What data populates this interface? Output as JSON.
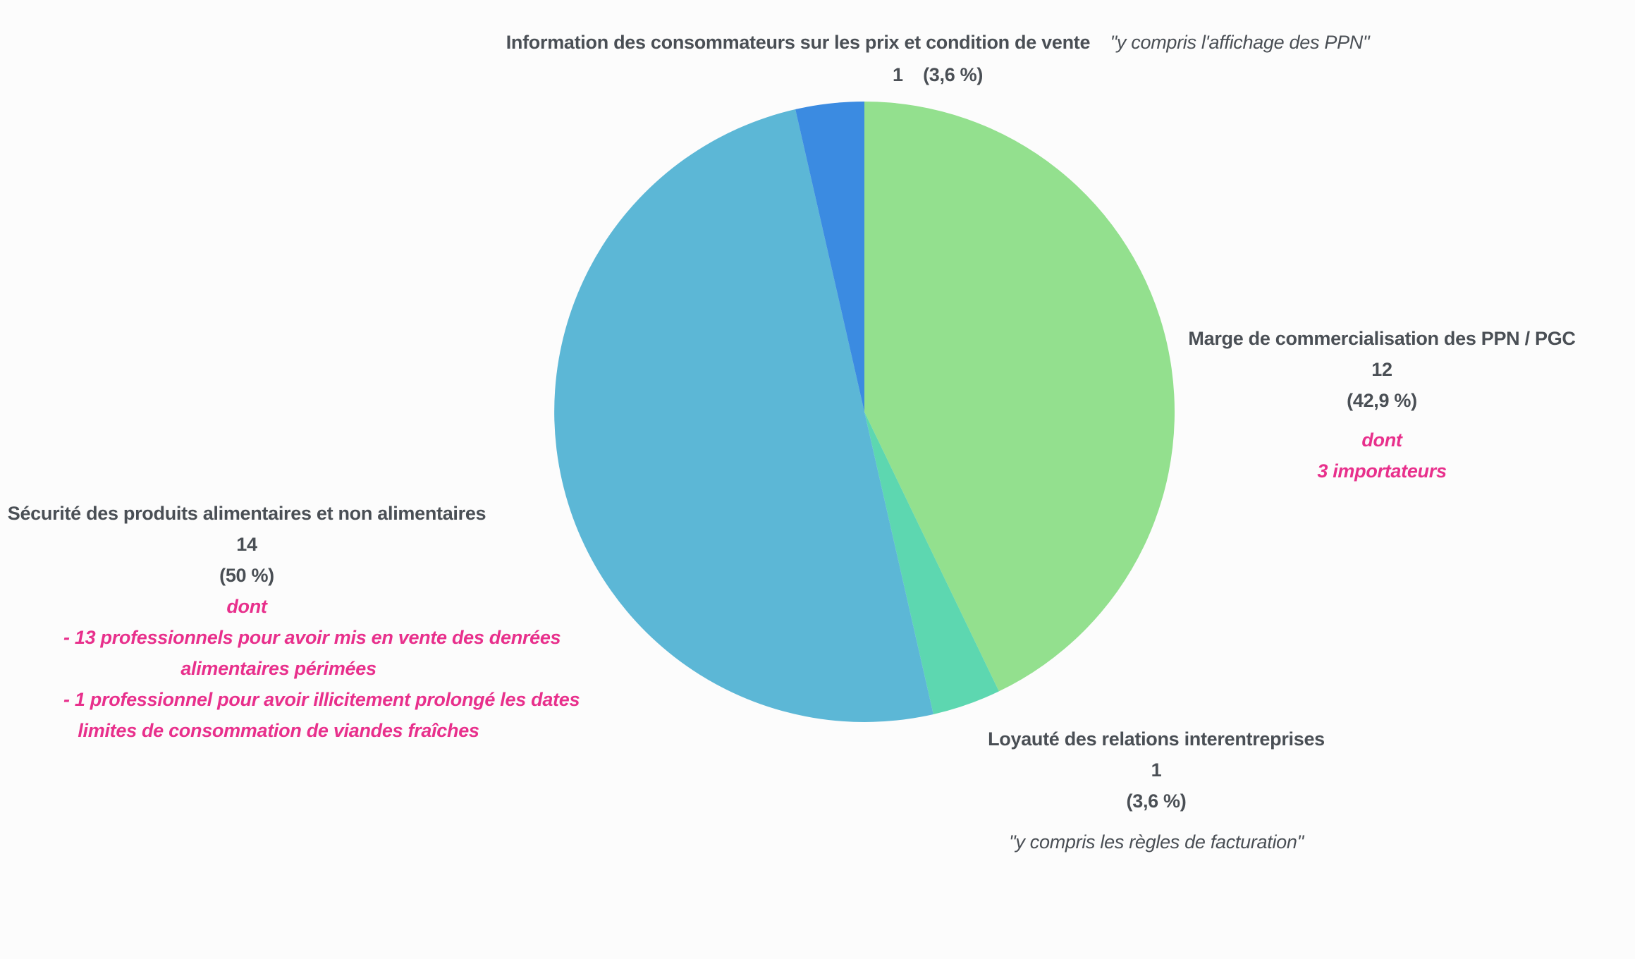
{
  "chart_data": {
    "type": "pie",
    "start_angle_deg": 0,
    "direction": "clockwise",
    "slices": [
      {
        "key": "marge",
        "label": "Marge de commercialisation des PPN / PGC",
        "value": 12,
        "percent_label": "(42,9 %)",
        "detail_intro": "dont",
        "details": [
          "3 importateurs"
        ],
        "color": "#93e08e"
      },
      {
        "key": "loyaute",
        "label": "Loyauté des relations interentreprises",
        "value": 1,
        "percent_label": "(3,6 %)",
        "note": "\"y compris les règles de facturation\"",
        "color": "#5dd7b0"
      },
      {
        "key": "securite",
        "label": "Sécurité des produits alimentaires et non alimentaires",
        "value": 14,
        "percent_label": "(50 %)",
        "detail_intro": "dont",
        "details": [
          "- 13 professionnels pour avoir mis en vente des denrées",
          "alimentaires périmées",
          "- 1 professionnel pour avoir illicitement prolongé les dates",
          "limites de consommation de viandes fraîches"
        ],
        "color": "#5cb7d6"
      },
      {
        "key": "info",
        "label": "Information des consommateurs sur les prix et condition de vente",
        "label_suffix": "\"y compris l'affichage des PPN\"",
        "value": 1,
        "percent_label": "(3,6 %)",
        "color": "#3b8be1"
      }
    ]
  }
}
